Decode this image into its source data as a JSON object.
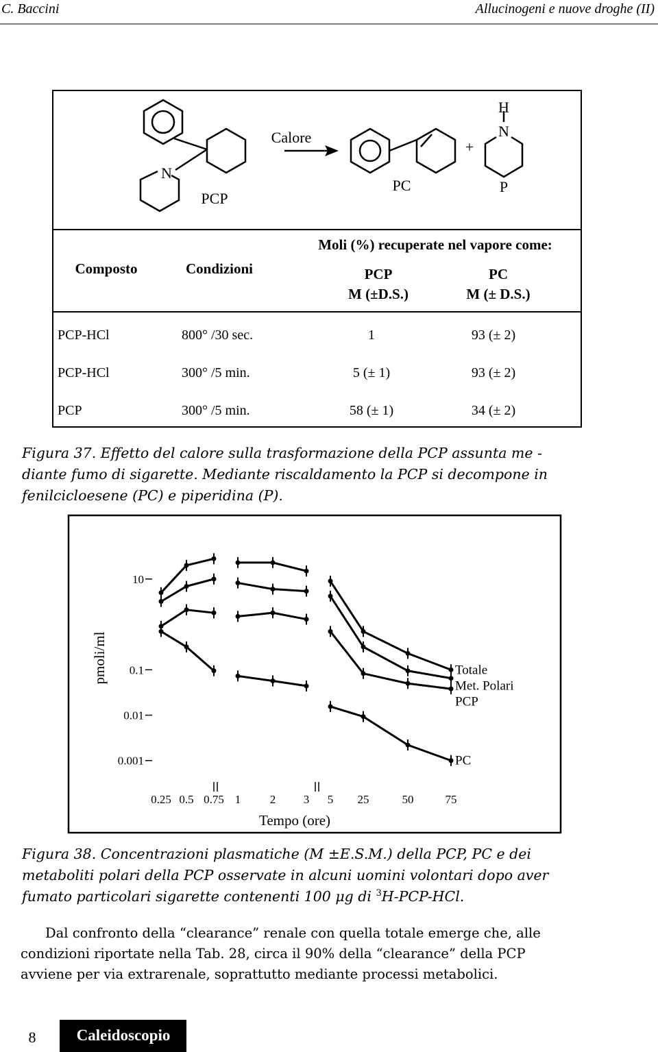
{
  "header": {
    "author": "C. Baccini",
    "title": "Allucinogeni e nuove droghe (II)"
  },
  "figure37": {
    "diagram": {
      "reactant": "PCP",
      "reactant_atom": "N",
      "condition": "Calore",
      "plus": "+",
      "product1": "PC",
      "product2": "P",
      "product2_atoms": [
        "H",
        "N"
      ]
    },
    "table": {
      "group_header": "Moli (%) recuperate nel vapore come:",
      "columns": [
        "Composto",
        "Condizioni"
      ],
      "value_columns": [
        {
          "name": "PCP",
          "unit": "M (±D.S.)"
        },
        {
          "name": "PC",
          "unit": "M (± D.S.)"
        }
      ],
      "rows": [
        [
          "PCP-HCl",
          "800° /30 sec.",
          "1",
          "93 (± 2)"
        ],
        [
          "PCP-HCl",
          "300° /5 min.",
          "5 (± 1)",
          "93 (± 2)"
        ],
        [
          "PCP",
          "300° /5 min.",
          "58 (± 1)",
          "34 (± 2)"
        ]
      ]
    },
    "caption": [
      "Figura 37. Effetto del calore sulla trasformazione della PCP assunta me -",
      "diante fumo di sigarette. Mediante riscaldamento la PCP si decompone in",
      "fenilcicloesene (PC) e piperidina (P)."
    ]
  },
  "figure38": {
    "chart_data": {
      "type": "line",
      "x_label": "Tempo (ore)",
      "y_label": "pmoli/ml",
      "y_scale": "log",
      "categories": [
        "0.25",
        "0.5",
        "0.75",
        "1",
        "2",
        "3",
        "5",
        "25",
        "50",
        "75"
      ],
      "ylim": [
        0.0007,
        40
      ],
      "yticks": [
        10,
        0.1,
        0.01,
        0.001
      ],
      "series": [
        {
          "name": "Totale",
          "color": "#000000",
          "values": [
            5,
            20,
            28,
            23,
            23,
            15,
            9,
            0.7,
            0.23,
            0.1
          ]
        },
        {
          "name": "Met. Polari",
          "color": "#000000",
          "values": [
            3.2,
            6.9,
            10,
            8.2,
            6,
            5.4,
            4.2,
            0.32,
            0.095,
            0.065
          ]
        },
        {
          "name": "PCP",
          "color": "#000000",
          "values": [
            0.91,
            2.1,
            1.8,
            1.5,
            1.8,
            1.3,
            0.7,
            0.083,
            0.05,
            0.038
          ]
        },
        {
          "name": "PC",
          "color": "#000000",
          "values": [
            0.7,
            0.32,
            0.095,
            0.073,
            0.057,
            0.044,
            0.0155,
            0.0093,
            0.0022,
            0.001
          ]
        }
      ]
    },
    "caption": [
      "Figura 38. Concentrazioni plasmatiche (M ±E.S.M.) della PCP, PC e dei",
      "metaboliti polari della PCP osservate in alcuni uomini volontari dopo aver",
      {
        "text": "fumato particolari sigarette contenenti 100 μg di ",
        "sup": "3",
        "tail": "H-PCP-HCl."
      }
    ]
  },
  "paragraph": [
    "Dal confronto della “clearance” renale con quella totale emerge che, alle",
    "condizioni riportate nella Tab. 28, circa il 90% della “clearance” della PCP",
    "avviene per via extrarenale, soprattutto mediante processi metabolici."
  ],
  "footer": {
    "page": "8",
    "series": "Caleidoscopio"
  }
}
